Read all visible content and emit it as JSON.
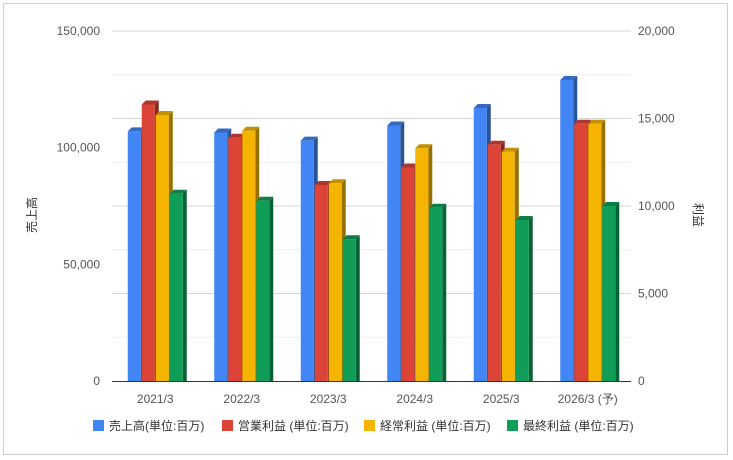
{
  "chart_data": {
    "type": "bar",
    "categories": [
      "2021/3",
      "2022/3",
      "2023/3",
      "2024/3",
      "2025/3",
      "2026/3 (予)"
    ],
    "left_axis": {
      "label": "売上高",
      "range": [
        0,
        150000
      ],
      "ticks": [
        "0",
        "50,000",
        "100,000",
        "150,000"
      ],
      "tick_values": [
        0,
        50000,
        100000,
        150000
      ]
    },
    "right_axis": {
      "label": "利益",
      "range": [
        0,
        20000
      ],
      "ticks": [
        "0",
        "5,000",
        "10,000",
        "15,000",
        "20,000"
      ],
      "tick_values": [
        0,
        5000,
        10000,
        15000,
        20000
      ]
    },
    "series": [
      {
        "name": "売上高(単位:百万)",
        "axis": "left",
        "color": "#4285f4",
        "values": [
          107000,
          106500,
          103000,
          109500,
          117000,
          129000
        ]
      },
      {
        "name": "営業利益 (単位:百万)",
        "axis": "right",
        "color": "#db4437",
        "values": [
          15800,
          13900,
          11200,
          12200,
          13500,
          14700
        ]
      },
      {
        "name": "経常利益 (単位:百万)",
        "axis": "right",
        "color": "#f4b400",
        "values": [
          15200,
          14300,
          11300,
          13300,
          13100,
          14700
        ]
      },
      {
        "name": "最終利益 (単位:百万)",
        "axis": "right",
        "color": "#0f9d58",
        "values": [
          10700,
          10300,
          8100,
          9900,
          9200,
          10000
        ]
      }
    ],
    "grid": true,
    "legend_position": "bottom"
  }
}
